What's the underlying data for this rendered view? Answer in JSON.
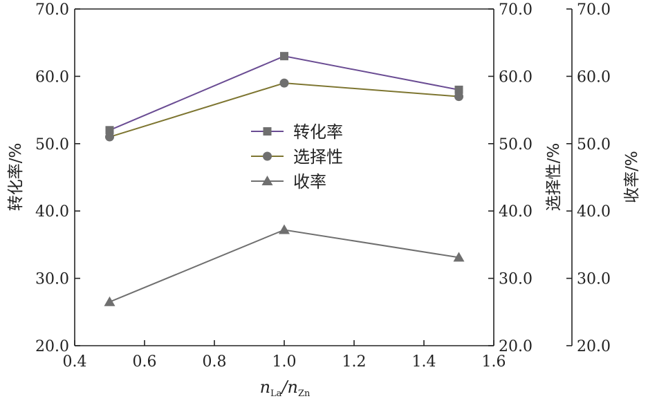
{
  "chart_data": {
    "type": "line",
    "x": [
      0.5,
      1.0,
      1.5
    ],
    "xlim": [
      0.4,
      1.6
    ],
    "x_ticks": [
      "0.4",
      "0.6",
      "0.8",
      "1.0",
      "1.2",
      "1.4",
      "1.6"
    ],
    "xlabel": {
      "main1": "n",
      "sub1": "La",
      "slash": "/",
      "main2": "n",
      "sub2": "Zn"
    },
    "y_axes": [
      {
        "label": "转化率/%",
        "ylim": [
          20,
          70
        ],
        "ticks": [
          "20.0",
          "30.0",
          "40.0",
          "50.0",
          "60.0",
          "70.0"
        ]
      },
      {
        "label": "选择性/%",
        "ylim": [
          20,
          70
        ],
        "ticks": [
          "20.0",
          "30.0",
          "40.0",
          "50.0",
          "60.0",
          "70.0"
        ]
      },
      {
        "label": "收率/%",
        "ylim": [
          20,
          70
        ],
        "ticks": [
          "20.0",
          "30.0",
          "40.0",
          "50.0",
          "60.0",
          "70.0"
        ]
      }
    ],
    "series": [
      {
        "name": "转化率",
        "values": [
          52.0,
          63.0,
          58.0
        ],
        "marker": "square",
        "color": "#6a4c93",
        "marker_color": "#6f6f6f"
      },
      {
        "name": "选择性",
        "values": [
          51.0,
          59.0,
          57.0
        ],
        "marker": "circle",
        "color": "#7d7530",
        "marker_color": "#6f6f6f"
      },
      {
        "name": "收率",
        "values": [
          26.5,
          37.2,
          33.1
        ],
        "marker": "triangle",
        "color": "#6f6f6f",
        "marker_color": "#6f6f6f"
      }
    ],
    "legend": {
      "placement": "center"
    },
    "grid": false
  }
}
